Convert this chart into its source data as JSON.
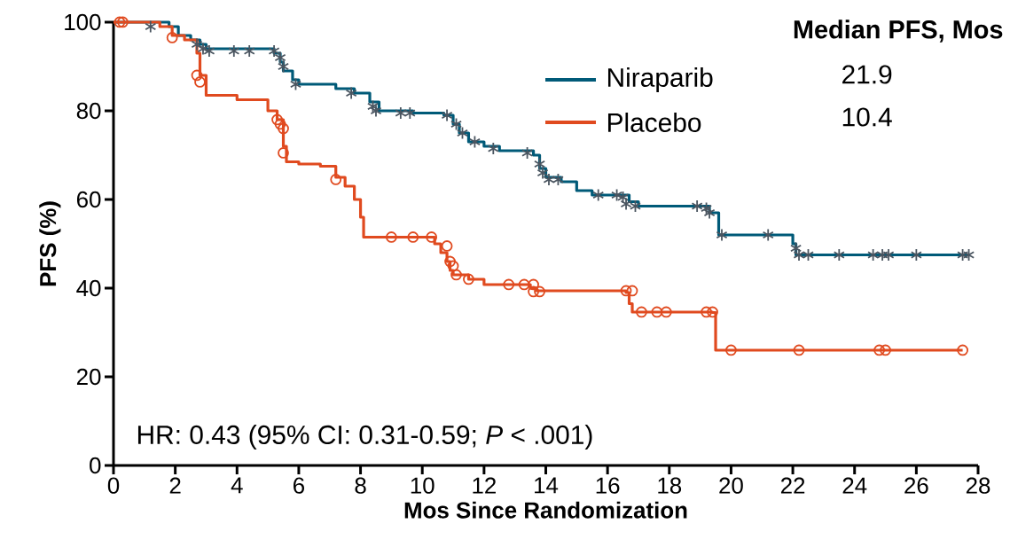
{
  "chart_data": {
    "type": "step",
    "xlabel": "Mos Since Randomization",
    "ylabel": "PFS (%)",
    "legend_title": "Median PFS, Mos",
    "legend": "top right",
    "grid": false,
    "xlim": [
      0,
      28
    ],
    "xticks": [
      0,
      2,
      4,
      6,
      8,
      10,
      12,
      14,
      16,
      18,
      20,
      22,
      24,
      26,
      28
    ],
    "ylim": [
      0,
      100
    ],
    "yticks": [
      0,
      20,
      40,
      60,
      80,
      100
    ],
    "annotations": [
      "HR: 0.43 (95% CI: 0.31-0.59; *P* < .001)",
      "21.9",
      "10.4"
    ],
    "series": [
      {
        "name": "Niraparib",
        "color": "#005a78",
        "x": [
          0,
          1.8,
          2.1,
          2.5,
          2.8,
          3.0,
          5.2,
          5.4,
          5.5,
          5.8,
          6.0,
          7.2,
          7.8,
          8.3,
          8.6,
          9.7,
          10.7,
          11.0,
          11.2,
          11.5,
          12.0,
          12.5,
          13.6,
          13.8,
          14.0,
          14.5,
          15.0,
          15.5,
          16.7,
          17.0,
          19.3,
          19.6,
          22.0,
          22.1,
          27.7
        ],
        "values": [
          100,
          99,
          97,
          96,
          95,
          94,
          93,
          91,
          89,
          87,
          86,
          85,
          84,
          82,
          80,
          79.5,
          79,
          77,
          75,
          73,
          72,
          71,
          70,
          67,
          65,
          64,
          62,
          61,
          59.5,
          58.5,
          57,
          52,
          50,
          47.5,
          47.5
        ]
      },
      {
        "name": "Placebo",
        "color": "#e04a1f",
        "x": [
          0,
          1.5,
          1.9,
          2.3,
          2.7,
          2.8,
          3.0,
          4.0,
          5.0,
          5.3,
          5.5,
          5.6,
          6.0,
          6.7,
          7.2,
          7.5,
          7.8,
          8.0,
          8.1,
          10.4,
          10.6,
          10.8,
          10.9,
          11.0,
          11.5,
          12.0,
          13.5,
          13.7,
          16.6,
          16.7,
          16.8,
          19.4,
          19.5,
          27.5
        ],
        "values": [
          100,
          99,
          97,
          96,
          93,
          88,
          83.5,
          82.5,
          80,
          78,
          72,
          68.5,
          68,
          67.5,
          65,
          63,
          60,
          56,
          51.5,
          50,
          48,
          46,
          44,
          43,
          42,
          40.8,
          40,
          39.4,
          39,
          36.5,
          34.6,
          34.5,
          26,
          26
        ]
      },
      {
        "type": "scatter",
        "color": "#4a5560",
        "marker": "cross",
        "x": [
          1.2,
          2.7,
          2.9,
          3.1,
          3.9,
          4.4,
          5.2,
          5.4,
          5.5,
          5.9,
          7.7,
          8.4,
          8.5,
          9.3,
          9.6,
          10.8,
          11.1,
          11.3,
          11.7,
          12.3,
          13.4,
          13.8,
          13.9,
          14.1,
          14.4,
          15.7,
          16.3,
          16.5,
          16.6,
          16.9,
          18.9,
          19.2,
          19.3,
          19.7,
          21.2,
          22.1,
          22.2,
          22.5,
          23.5,
          24.6,
          24.9,
          25.1,
          26.0,
          27.5,
          27.7
        ],
        "values": [
          99,
          95,
          94,
          93.5,
          93.5,
          93.5,
          93.5,
          92,
          90,
          86,
          84,
          81,
          80,
          79.5,
          79.5,
          79,
          77,
          75,
          73,
          71.5,
          70.5,
          68,
          66,
          64.5,
          64.5,
          61,
          61,
          60.5,
          59,
          58.5,
          58.5,
          58,
          57,
          52,
          52,
          49,
          47.5,
          47.5,
          47.5,
          47.5,
          47.5,
          47.5,
          47.5,
          47.5,
          47.5
        ]
      },
      {
        "type": "scatter",
        "color": "#e04a1f",
        "marker": "circle",
        "x": [
          0.2,
          0.3,
          1.9,
          2.7,
          2.8,
          5.3,
          5.4,
          5.5,
          5.5,
          7.2,
          9.0,
          9.7,
          10.3,
          10.8,
          10.9,
          11.0,
          11.1,
          11.5,
          12.8,
          13.3,
          13.6,
          13.6,
          13.8,
          16.6,
          16.8,
          17.1,
          17.6,
          17.9,
          19.2,
          19.4,
          20.0,
          22.2,
          24.8,
          25.0,
          27.5
        ],
        "values": [
          100,
          100,
          96.5,
          88,
          86.5,
          78,
          77,
          76,
          70.5,
          64.5,
          51.5,
          51.5,
          51.5,
          49.5,
          46,
          45,
          43,
          42,
          40.8,
          40.8,
          40.8,
          39.2,
          39.2,
          39.4,
          39.4,
          34.6,
          34.6,
          34.6,
          34.6,
          34.6,
          26,
          26,
          26,
          26,
          26
        ]
      }
    ]
  }
}
